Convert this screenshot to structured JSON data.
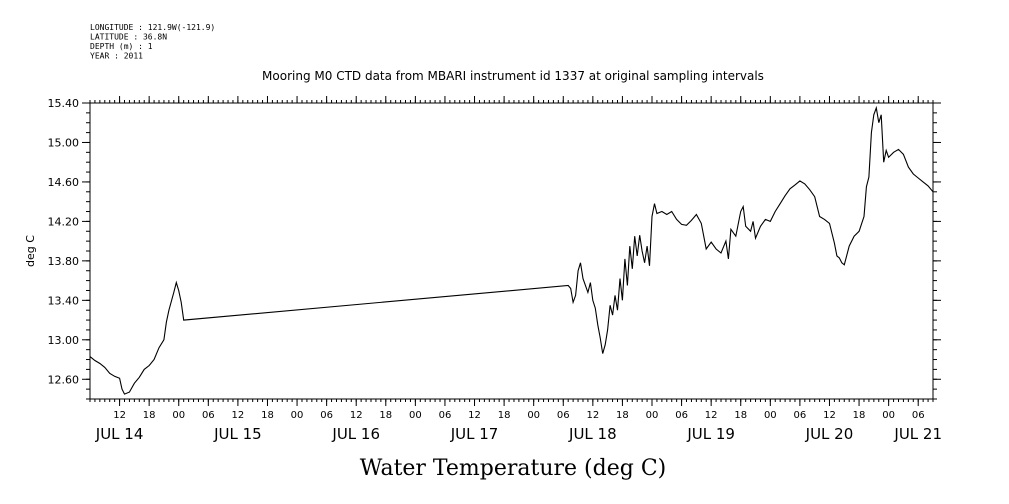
{
  "header": {
    "lines": [
      "LONGITUDE : 121.9W(-121.9)",
      "LATITUDE : 36.8N",
      "DEPTH (m) : 1",
      "YEAR : 2011"
    ]
  },
  "chart_data": {
    "type": "line",
    "title": "Mooring M0 CTD data from MBARI instrument id 1337 at original sampling intervals",
    "ylabel": "deg C",
    "xlabel": "Water Temperature (deg C)",
    "xlim": [
      "2011-07-14 06:00",
      "2011-07-21 09:00"
    ],
    "ylim": [
      12.4,
      15.4
    ],
    "y_ticks": [
      "12.60",
      "13.00",
      "13.40",
      "13.80",
      "14.20",
      "14.60",
      "15.00",
      "15.40"
    ],
    "x_hour_ticks": [
      {
        "t": "2011-07-14 12:00",
        "label": "12"
      },
      {
        "t": "2011-07-14 18:00",
        "label": "18"
      },
      {
        "t": "2011-07-15 00:00",
        "label": "00"
      },
      {
        "t": "2011-07-15 06:00",
        "label": "06"
      },
      {
        "t": "2011-07-15 12:00",
        "label": "12"
      },
      {
        "t": "2011-07-15 18:00",
        "label": "18"
      },
      {
        "t": "2011-07-16 00:00",
        "label": "00"
      },
      {
        "t": "2011-07-16 06:00",
        "label": "06"
      },
      {
        "t": "2011-07-16 12:00",
        "label": "12"
      },
      {
        "t": "2011-07-16 18:00",
        "label": "18"
      },
      {
        "t": "2011-07-17 00:00",
        "label": "00"
      },
      {
        "t": "2011-07-17 06:00",
        "label": "06"
      },
      {
        "t": "2011-07-17 12:00",
        "label": "12"
      },
      {
        "t": "2011-07-17 18:00",
        "label": "18"
      },
      {
        "t": "2011-07-18 00:00",
        "label": "00"
      },
      {
        "t": "2011-07-18 06:00",
        "label": "06"
      },
      {
        "t": "2011-07-18 12:00",
        "label": "12"
      },
      {
        "t": "2011-07-18 18:00",
        "label": "18"
      },
      {
        "t": "2011-07-19 00:00",
        "label": "00"
      },
      {
        "t": "2011-07-19 06:00",
        "label": "06"
      },
      {
        "t": "2011-07-19 12:00",
        "label": "12"
      },
      {
        "t": "2011-07-19 18:00",
        "label": "18"
      },
      {
        "t": "2011-07-20 00:00",
        "label": "00"
      },
      {
        "t": "2011-07-20 06:00",
        "label": "06"
      },
      {
        "t": "2011-07-20 12:00",
        "label": "12"
      },
      {
        "t": "2011-07-20 18:00",
        "label": "18"
      },
      {
        "t": "2011-07-21 00:00",
        "label": "00"
      },
      {
        "t": "2011-07-21 06:00",
        "label": "06"
      }
    ],
    "x_day_labels": [
      {
        "t": "2011-07-14 12:00",
        "label": "JUL 14"
      },
      {
        "t": "2011-07-15 12:00",
        "label": "JUL 15"
      },
      {
        "t": "2011-07-16 12:00",
        "label": "JUL 16"
      },
      {
        "t": "2011-07-17 12:00",
        "label": "JUL 17"
      },
      {
        "t": "2011-07-18 12:00",
        "label": "JUL 18"
      },
      {
        "t": "2011-07-19 12:00",
        "label": "JUL 19"
      },
      {
        "t": "2011-07-20 12:00",
        "label": "JUL 20"
      },
      {
        "t": "2011-07-21 06:00",
        "label": "JUL 21"
      }
    ],
    "grid": false,
    "series": [
      {
        "color": "#000000",
        "points": [
          [
            "2011-07-14 06:00",
            12.83
          ],
          [
            "2011-07-14 07:00",
            12.79
          ],
          [
            "2011-07-14 08:00",
            12.76
          ],
          [
            "2011-07-14 09:00",
            12.72
          ],
          [
            "2011-07-14 10:00",
            12.66
          ],
          [
            "2011-07-14 11:00",
            12.63
          ],
          [
            "2011-07-14 12:00",
            12.61
          ],
          [
            "2011-07-14 12:30",
            12.5
          ],
          [
            "2011-07-14 13:00",
            12.45
          ],
          [
            "2011-07-14 14:00",
            12.47
          ],
          [
            "2011-07-14 15:00",
            12.56
          ],
          [
            "2011-07-14 16:00",
            12.62
          ],
          [
            "2011-07-14 17:00",
            12.7
          ],
          [
            "2011-07-14 18:00",
            12.74
          ],
          [
            "2011-07-14 19:00",
            12.8
          ],
          [
            "2011-07-14 20:00",
            12.92
          ],
          [
            "2011-07-14 21:00",
            13.0
          ],
          [
            "2011-07-14 21:30",
            13.18
          ],
          [
            "2011-07-14 22:00",
            13.3
          ],
          [
            "2011-07-14 23:00",
            13.48
          ],
          [
            "2011-07-14 23:30",
            13.58
          ],
          [
            "2011-07-15 00:00",
            13.5
          ],
          [
            "2011-07-15 00:30",
            13.38
          ],
          [
            "2011-07-15 01:00",
            13.2
          ],
          [
            "2011-07-18 07:00",
            13.55
          ],
          [
            "2011-07-18 07:30",
            13.52
          ],
          [
            "2011-07-18 08:00",
            13.38
          ],
          [
            "2011-07-18 08:30",
            13.45
          ],
          [
            "2011-07-18 09:00",
            13.7
          ],
          [
            "2011-07-18 09:30",
            13.78
          ],
          [
            "2011-07-18 10:00",
            13.62
          ],
          [
            "2011-07-18 11:00",
            13.48
          ],
          [
            "2011-07-18 11:30",
            13.58
          ],
          [
            "2011-07-18 12:00",
            13.4
          ],
          [
            "2011-07-18 12:30",
            13.32
          ],
          [
            "2011-07-18 13:00",
            13.15
          ],
          [
            "2011-07-18 13:30",
            13.02
          ],
          [
            "2011-07-18 14:00",
            12.86
          ],
          [
            "2011-07-18 14:30",
            12.95
          ],
          [
            "2011-07-18 15:00",
            13.1
          ],
          [
            "2011-07-18 15:30",
            13.35
          ],
          [
            "2011-07-18 16:00",
            13.25
          ],
          [
            "2011-07-18 16:30",
            13.45
          ],
          [
            "2011-07-18 17:00",
            13.3
          ],
          [
            "2011-07-18 17:30",
            13.62
          ],
          [
            "2011-07-18 18:00",
            13.4
          ],
          [
            "2011-07-18 18:30",
            13.82
          ],
          [
            "2011-07-18 19:00",
            13.55
          ],
          [
            "2011-07-18 19:30",
            13.95
          ],
          [
            "2011-07-18 20:00",
            13.72
          ],
          [
            "2011-07-18 20:30",
            14.05
          ],
          [
            "2011-07-18 21:00",
            13.85
          ],
          [
            "2011-07-18 21:30",
            14.06
          ],
          [
            "2011-07-18 22:00",
            13.9
          ],
          [
            "2011-07-18 22:30",
            13.78
          ],
          [
            "2011-07-18 23:00",
            13.95
          ],
          [
            "2011-07-18 23:30",
            13.75
          ],
          [
            "2011-07-19 00:00",
            14.25
          ],
          [
            "2011-07-19 00:30",
            14.38
          ],
          [
            "2011-07-19 01:00",
            14.28
          ],
          [
            "2011-07-19 02:00",
            14.3
          ],
          [
            "2011-07-19 03:00",
            14.27
          ],
          [
            "2011-07-19 04:00",
            14.3
          ],
          [
            "2011-07-19 05:00",
            14.22
          ],
          [
            "2011-07-19 06:00",
            14.17
          ],
          [
            "2011-07-19 07:00",
            14.16
          ],
          [
            "2011-07-19 08:00",
            14.21
          ],
          [
            "2011-07-19 09:00",
            14.27
          ],
          [
            "2011-07-19 10:00",
            14.18
          ],
          [
            "2011-07-19 11:00",
            13.92
          ],
          [
            "2011-07-19 12:00",
            13.99
          ],
          [
            "2011-07-19 13:00",
            13.92
          ],
          [
            "2011-07-19 14:00",
            13.88
          ],
          [
            "2011-07-19 15:00",
            14.0
          ],
          [
            "2011-07-19 15:30",
            13.82
          ],
          [
            "2011-07-19 16:00",
            14.12
          ],
          [
            "2011-07-19 17:00",
            14.05
          ],
          [
            "2011-07-19 18:00",
            14.3
          ],
          [
            "2011-07-19 18:30",
            14.35
          ],
          [
            "2011-07-19 19:00",
            14.15
          ],
          [
            "2011-07-19 20:00",
            14.1
          ],
          [
            "2011-07-19 20:30",
            14.2
          ],
          [
            "2011-07-19 21:00",
            14.03
          ],
          [
            "2011-07-19 22:00",
            14.15
          ],
          [
            "2011-07-19 23:00",
            14.22
          ],
          [
            "2011-07-20 00:00",
            14.2
          ],
          [
            "2011-07-20 01:00",
            14.3
          ],
          [
            "2011-07-20 02:00",
            14.38
          ],
          [
            "2011-07-20 03:00",
            14.46
          ],
          [
            "2011-07-20 04:00",
            14.53
          ],
          [
            "2011-07-20 05:00",
            14.57
          ],
          [
            "2011-07-20 06:00",
            14.61
          ],
          [
            "2011-07-20 07:00",
            14.58
          ],
          [
            "2011-07-20 08:00",
            14.52
          ],
          [
            "2011-07-20 09:00",
            14.45
          ],
          [
            "2011-07-20 10:00",
            14.25
          ],
          [
            "2011-07-20 11:00",
            14.22
          ],
          [
            "2011-07-20 12:00",
            14.18
          ],
          [
            "2011-07-20 13:00",
            13.98
          ],
          [
            "2011-07-20 13:30",
            13.85
          ],
          [
            "2011-07-20 14:00",
            13.83
          ],
          [
            "2011-07-20 14:30",
            13.78
          ],
          [
            "2011-07-20 15:00",
            13.76
          ],
          [
            "2011-07-20 16:00",
            13.95
          ],
          [
            "2011-07-20 17:00",
            14.05
          ],
          [
            "2011-07-20 18:00",
            14.1
          ],
          [
            "2011-07-20 19:00",
            14.25
          ],
          [
            "2011-07-20 19:30",
            14.55
          ],
          [
            "2011-07-20 20:00",
            14.65
          ],
          [
            "2011-07-20 20:30",
            15.1
          ],
          [
            "2011-07-20 21:00",
            15.28
          ],
          [
            "2011-07-20 21:30",
            15.35
          ],
          [
            "2011-07-20 22:00",
            15.2
          ],
          [
            "2011-07-20 22:30",
            15.28
          ],
          [
            "2011-07-20 23:00",
            14.8
          ],
          [
            "2011-07-20 23:30",
            14.92
          ],
          [
            "2011-07-21 00:00",
            14.85
          ],
          [
            "2011-07-21 01:00",
            14.9
          ],
          [
            "2011-07-21 02:00",
            14.93
          ],
          [
            "2011-07-21 03:00",
            14.88
          ],
          [
            "2011-07-21 04:00",
            14.75
          ],
          [
            "2011-07-21 05:00",
            14.68
          ],
          [
            "2011-07-21 06:00",
            14.64
          ],
          [
            "2011-07-21 07:00",
            14.6
          ],
          [
            "2011-07-21 08:00",
            14.56
          ],
          [
            "2011-07-21 09:00",
            14.5
          ]
        ]
      }
    ]
  }
}
